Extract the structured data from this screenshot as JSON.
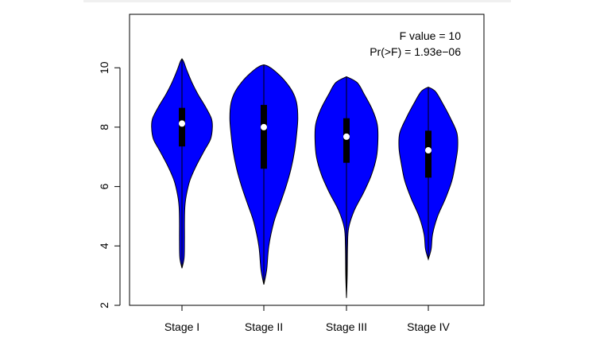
{
  "chart_data": {
    "type": "violin",
    "title": "",
    "xlabel": "",
    "ylabel": "",
    "ylim": [
      2.0,
      11.8
    ],
    "yticks": [
      2,
      4,
      6,
      8,
      10
    ],
    "categories": [
      "Stage I",
      "Stage II",
      "Stage III",
      "Stage IV"
    ],
    "annotations": [
      "F value = 10",
      "Pr(>F) = 1.93e−06"
    ],
    "colors": {
      "fill": "#0000ff",
      "outline": "#000000",
      "median_dot": "#ffffff"
    },
    "grid": false,
    "legend": "none",
    "violins": [
      {
        "name": "Stage I",
        "min": 3.25,
        "q1": 7.35,
        "median": 8.12,
        "q3": 8.65,
        "max": 10.3,
        "density": [
          [
            3.25,
            0.0
          ],
          [
            3.6,
            0.06
          ],
          [
            4.2,
            0.07
          ],
          [
            4.8,
            0.07
          ],
          [
            5.3,
            0.08
          ],
          [
            5.7,
            0.12
          ],
          [
            6.2,
            0.22
          ],
          [
            6.7,
            0.4
          ],
          [
            7.2,
            0.62
          ],
          [
            7.6,
            0.8
          ],
          [
            8.0,
            0.85
          ],
          [
            8.3,
            0.82
          ],
          [
            8.7,
            0.65
          ],
          [
            9.1,
            0.45
          ],
          [
            9.5,
            0.28
          ],
          [
            9.9,
            0.14
          ],
          [
            10.2,
            0.05
          ],
          [
            10.3,
            0.0
          ]
        ]
      },
      {
        "name": "Stage II",
        "min": 2.7,
        "q1": 6.6,
        "median": 8.0,
        "q3": 8.75,
        "max": 10.1,
        "density": [
          [
            2.7,
            0.0
          ],
          [
            3.2,
            0.08
          ],
          [
            4.0,
            0.14
          ],
          [
            4.8,
            0.28
          ],
          [
            5.4,
            0.45
          ],
          [
            6.0,
            0.62
          ],
          [
            6.6,
            0.76
          ],
          [
            7.2,
            0.86
          ],
          [
            7.8,
            0.92
          ],
          [
            8.3,
            0.95
          ],
          [
            8.8,
            0.92
          ],
          [
            9.2,
            0.8
          ],
          [
            9.6,
            0.56
          ],
          [
            9.9,
            0.3
          ],
          [
            10.05,
            0.12
          ],
          [
            10.1,
            0.0
          ]
        ]
      },
      {
        "name": "Stage III",
        "min": 2.25,
        "q1": 6.8,
        "median": 7.68,
        "q3": 8.3,
        "max": 9.7,
        "density": [
          [
            2.25,
            0.0
          ],
          [
            3.0,
            0.02
          ],
          [
            4.0,
            0.03
          ],
          [
            4.6,
            0.06
          ],
          [
            5.2,
            0.22
          ],
          [
            5.8,
            0.48
          ],
          [
            6.4,
            0.7
          ],
          [
            7.0,
            0.84
          ],
          [
            7.6,
            0.88
          ],
          [
            8.1,
            0.86
          ],
          [
            8.6,
            0.72
          ],
          [
            9.1,
            0.5
          ],
          [
            9.5,
            0.3
          ],
          [
            9.7,
            0.0
          ]
        ]
      },
      {
        "name": "Stage IV",
        "min": 3.55,
        "q1": 6.3,
        "median": 7.22,
        "q3": 7.88,
        "max": 9.35,
        "density": [
          [
            3.55,
            0.0
          ],
          [
            3.9,
            0.08
          ],
          [
            4.4,
            0.12
          ],
          [
            5.0,
            0.26
          ],
          [
            5.6,
            0.48
          ],
          [
            6.2,
            0.66
          ],
          [
            6.8,
            0.76
          ],
          [
            7.3,
            0.82
          ],
          [
            7.8,
            0.8
          ],
          [
            8.3,
            0.62
          ],
          [
            8.8,
            0.4
          ],
          [
            9.2,
            0.2
          ],
          [
            9.35,
            0.0
          ]
        ]
      }
    ]
  }
}
